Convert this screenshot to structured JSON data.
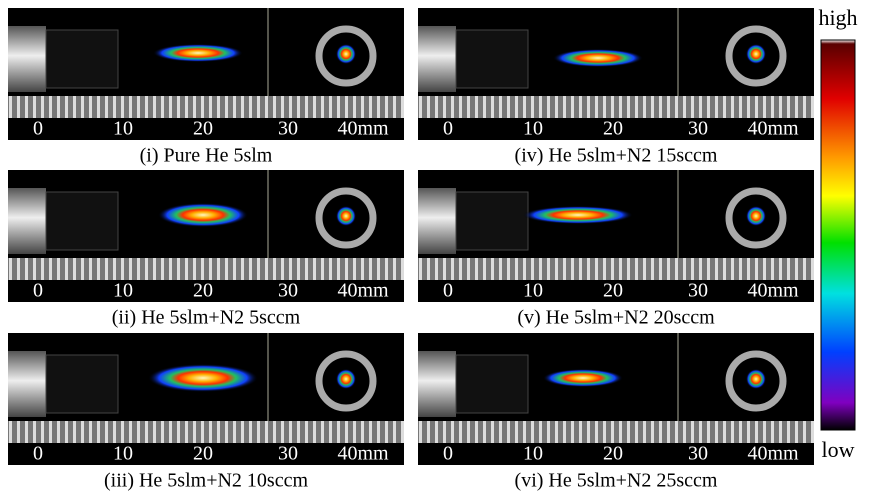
{
  "panels": [
    {
      "caption": "(i) Pure He 5slm"
    },
    {
      "caption": "(iv) He 5slm+N2 15sccm"
    },
    {
      "caption": "(ii) He 5slm+N2 5sccm"
    },
    {
      "caption": "(v) He 5slm+N2 20sccm"
    },
    {
      "caption": "(iii) He 5slm+N2 10sccm"
    },
    {
      "caption": "(vi) He 5slm+N2 25sccm"
    }
  ],
  "scale_labels": [
    "0",
    "10",
    "20",
    "30",
    "40mm"
  ],
  "colorbar": {
    "top_label": "high",
    "bottom_label": "low"
  }
}
